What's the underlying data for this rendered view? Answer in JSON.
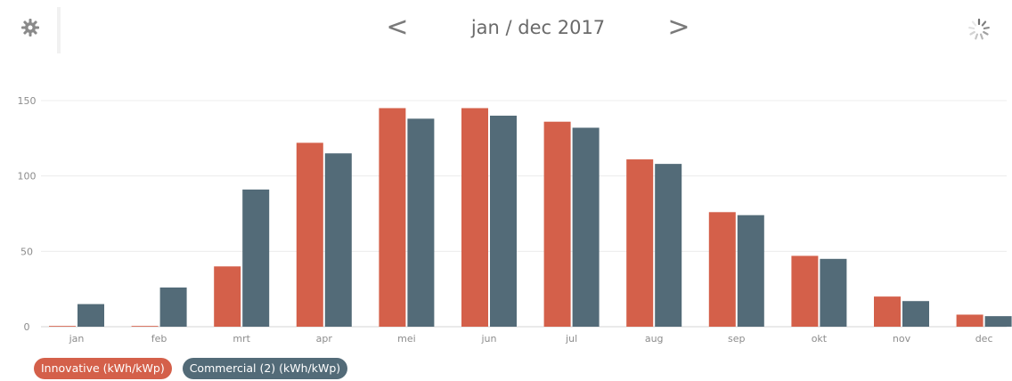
{
  "header": {
    "period_label": "jan / dec 2017",
    "prev_label": "<",
    "next_label": ">"
  },
  "colors": {
    "innovative": "#d4604a",
    "commercial": "#536b78"
  },
  "legend": [
    {
      "label": "Innovative (kWh/kWp)",
      "color": "#d4604a"
    },
    {
      "label": "Commercial (2) (kWh/kWp)",
      "color": "#536b78"
    }
  ],
  "chart_data": {
    "type": "bar",
    "categories": [
      "jan",
      "feb",
      "mrt",
      "apr",
      "mei",
      "jun",
      "jul",
      "aug",
      "sep",
      "okt",
      "nov",
      "dec"
    ],
    "series": [
      {
        "name": "Innovative (kWh/kWp)",
        "color": "#d4604a",
        "values": [
          0.5,
          0.5,
          40,
          122,
          145,
          145,
          136,
          111,
          76,
          47,
          20,
          8
        ]
      },
      {
        "name": "Commercial (2) (kWh/kWp)",
        "color": "#536b78",
        "values": [
          15,
          26,
          91,
          115,
          138,
          140,
          132,
          108,
          74,
          45,
          17,
          7
        ]
      }
    ],
    "yticks": [
      0,
      50,
      100,
      150
    ],
    "ylim": [
      0,
      160
    ],
    "grid": true,
    "legend_position": "bottom-left",
    "title": "",
    "xlabel": "",
    "ylabel": ""
  }
}
